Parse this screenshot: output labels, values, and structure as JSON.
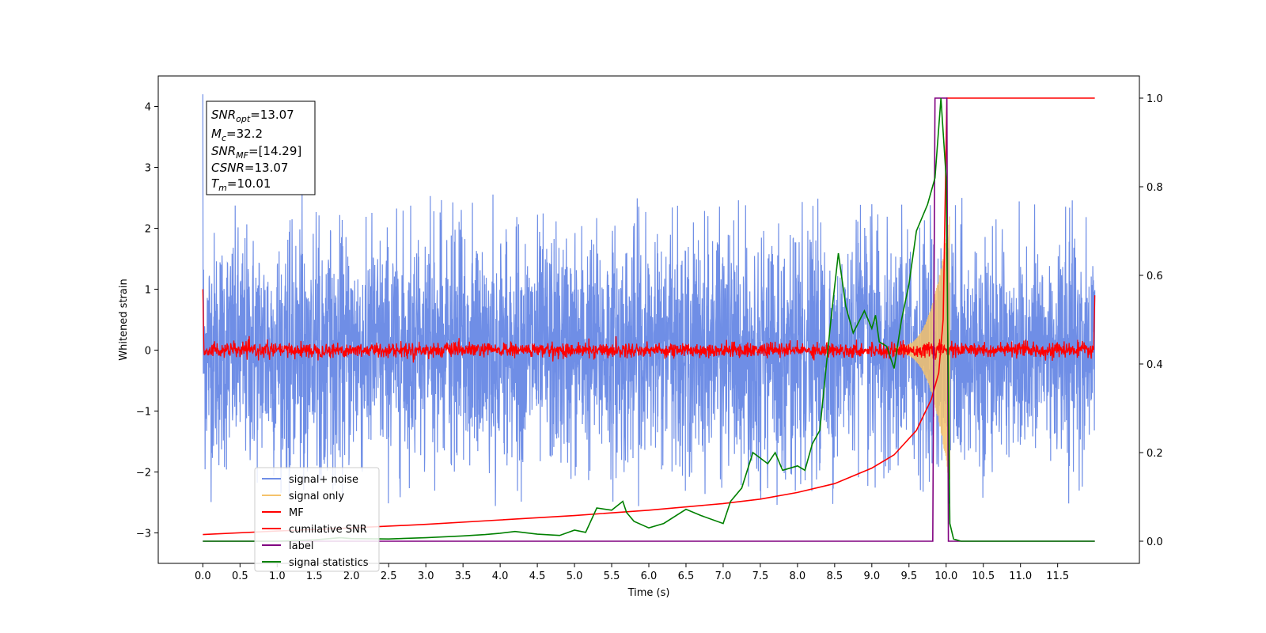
{
  "chart_data": {
    "type": "line",
    "xlabel": "Time (s)",
    "ylabel": "Whitened strain",
    "xlim": [
      -0.6,
      12.6
    ],
    "ylim": [
      -3.5,
      4.5
    ],
    "y2lim": [
      -0.05,
      1.05
    ],
    "x_ticks": [
      "0.0",
      "0.5",
      "1.0",
      "1.5",
      "2.0",
      "2.5",
      "3.0",
      "3.5",
      "4.0",
      "4.5",
      "5.0",
      "5.5",
      "6.0",
      "6.5",
      "7.0",
      "7.5",
      "8.0",
      "8.5",
      "9.0",
      "9.5",
      "10.0",
      "10.5",
      "11.0",
      "11.5"
    ],
    "y_ticks": [
      "−3",
      "−2",
      "−1",
      "0",
      "1",
      "2",
      "3",
      "4"
    ],
    "y2_ticks": [
      "0.0",
      "0.2",
      "0.4",
      "0.6",
      "0.8",
      "1.0"
    ],
    "grid": false,
    "legend_position": "lower-left",
    "colors": {
      "signal_noise": "#6f8ee6",
      "signal_only": "#f5c26b",
      "mf": "#ff0000",
      "cumulative_snr": "#ff0000",
      "label": "#800080",
      "signal_statistics": "#008000"
    },
    "annotation": {
      "line1_main": "SNR",
      "line1_sub": "opt",
      "line1_value": "=13.07",
      "line2_main": "M",
      "line2_sub": "c",
      "line2_value": "=32.2",
      "line3_main": "SNR",
      "line3_sub": "MF",
      "line3_value": "=[14.29]",
      "line4_main": "CSNR",
      "line4_value": "=13.07",
      "line5_main": "T",
      "line5_sub": "m",
      "line5_value": "=10.01"
    },
    "series": [
      {
        "name": "signal+ noise",
        "axis": "left",
        "kind": "noise",
        "x_range": [
          0,
          12.0
        ],
        "amplitude_range": [
          -2.6,
          2.6
        ],
        "note_visual": "dense random trace"
      },
      {
        "name": "signal only",
        "axis": "left",
        "kind": "chirp",
        "x_range": [
          9.3,
          10.05
        ]
      },
      {
        "name": "MF",
        "axis": "left",
        "kind": "noise_small",
        "x_range": [
          0,
          12.0
        ],
        "amplitude_range": [
          -0.15,
          0.15
        ]
      },
      {
        "name": "cumilative SNR",
        "axis": "right",
        "x": [
          0,
          1,
          2,
          3,
          4,
          5,
          6,
          7,
          7.5,
          8,
          8.5,
          9,
          9.3,
          9.6,
          9.8,
          9.9,
          9.96,
          10.01,
          10.02,
          11.0,
          12.0
        ],
        "values": [
          0.015,
          0.023,
          0.03,
          0.038,
          0.048,
          0.058,
          0.07,
          0.085,
          0.095,
          0.11,
          0.13,
          0.165,
          0.195,
          0.25,
          0.32,
          0.38,
          0.5,
          1.0,
          1.0,
          1.0,
          1.0
        ]
      },
      {
        "name": "label",
        "axis": "right",
        "x": [
          0,
          9.82,
          9.85,
          10.01,
          10.03,
          11.0,
          12.0
        ],
        "values": [
          0.0,
          0.0,
          1.0,
          1.0,
          0.0,
          0.0,
          0.0
        ]
      },
      {
        "name": "signal statistics",
        "axis": "right",
        "x": [
          0,
          0.5,
          1.0,
          1.5,
          1.85,
          2.0,
          2.5,
          3.0,
          3.5,
          3.8,
          4.0,
          4.2,
          4.5,
          4.8,
          5.0,
          5.15,
          5.3,
          5.5,
          5.65,
          5.7,
          5.8,
          6.0,
          6.2,
          6.5,
          6.7,
          7.0,
          7.1,
          7.25,
          7.4,
          7.6,
          7.7,
          7.8,
          8.0,
          8.1,
          8.2,
          8.3,
          8.45,
          8.55,
          8.65,
          8.75,
          8.9,
          9.0,
          9.05,
          9.1,
          9.2,
          9.3,
          9.4,
          9.5,
          9.6,
          9.75,
          9.85,
          9.93,
          10.0,
          10.05,
          10.1,
          10.2,
          11.0,
          12.0
        ],
        "values": [
          0.0,
          0.0,
          0.0,
          0.003,
          0.008,
          0.006,
          0.005,
          0.008,
          0.012,
          0.015,
          0.018,
          0.022,
          0.016,
          0.013,
          0.025,
          0.02,
          0.075,
          0.07,
          0.09,
          0.065,
          0.045,
          0.03,
          0.04,
          0.072,
          0.058,
          0.04,
          0.09,
          0.12,
          0.2,
          0.175,
          0.2,
          0.16,
          0.17,
          0.16,
          0.22,
          0.25,
          0.5,
          0.65,
          0.53,
          0.47,
          0.52,
          0.48,
          0.51,
          0.45,
          0.44,
          0.39,
          0.5,
          0.58,
          0.7,
          0.76,
          0.82,
          1.0,
          0.82,
          0.04,
          0.005,
          0.0,
          0.0,
          0.0
        ]
      }
    ]
  }
}
